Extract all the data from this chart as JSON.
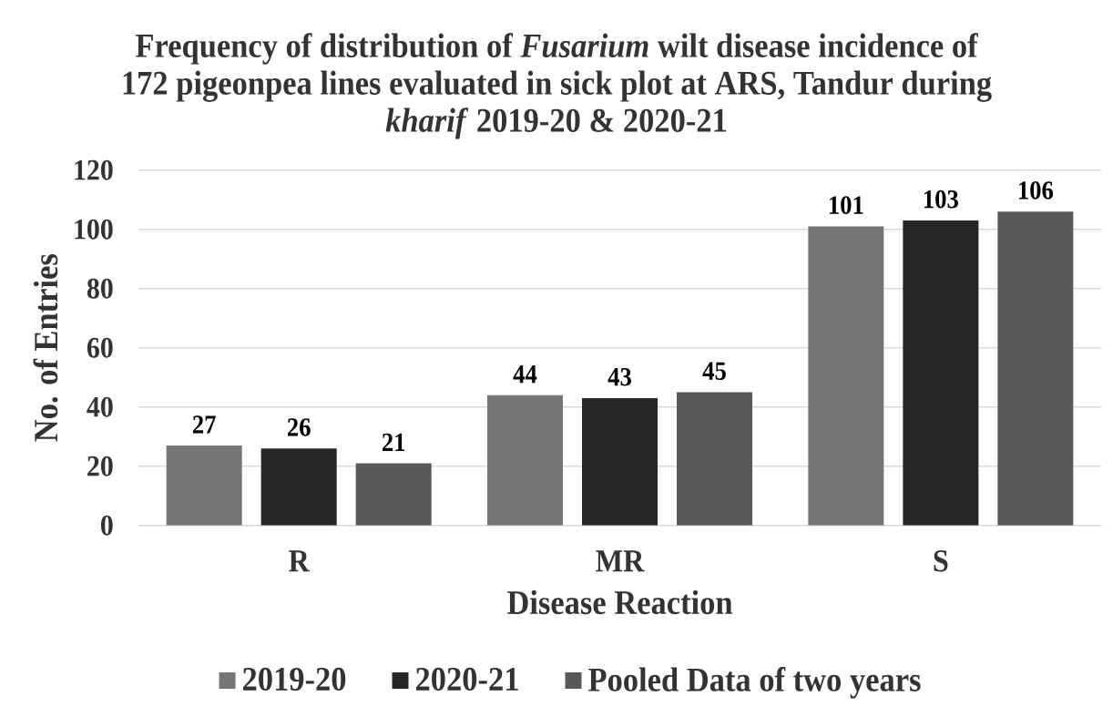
{
  "chart_data": {
    "type": "bar",
    "title": "Frequency of distribution of *Fusarium* wilt disease incidence of 172 pigeonpea lines evaluated in sick plot at ARS, Tandur during *kharif* 2019-20 & 2020-21",
    "xlabel": "Disease Reaction",
    "ylabel": "No. of Entries",
    "categories": [
      "R",
      "MR",
      "S"
    ],
    "series": [
      {
        "name": "2019-20",
        "color": "#767676",
        "values": [
          27,
          44,
          101
        ]
      },
      {
        "name": "2020-21",
        "color": "#262626",
        "values": [
          26,
          43,
          103
        ]
      },
      {
        "name": "Pooled Data of two years",
        "color": "#595959",
        "values": [
          21,
          45,
          106
        ]
      }
    ],
    "ylim": [
      0,
      120
    ],
    "yticks": [
      0,
      20,
      40,
      60,
      80,
      100,
      120
    ],
    "grid": "y",
    "legend": "bottom",
    "data_labels": true
  }
}
